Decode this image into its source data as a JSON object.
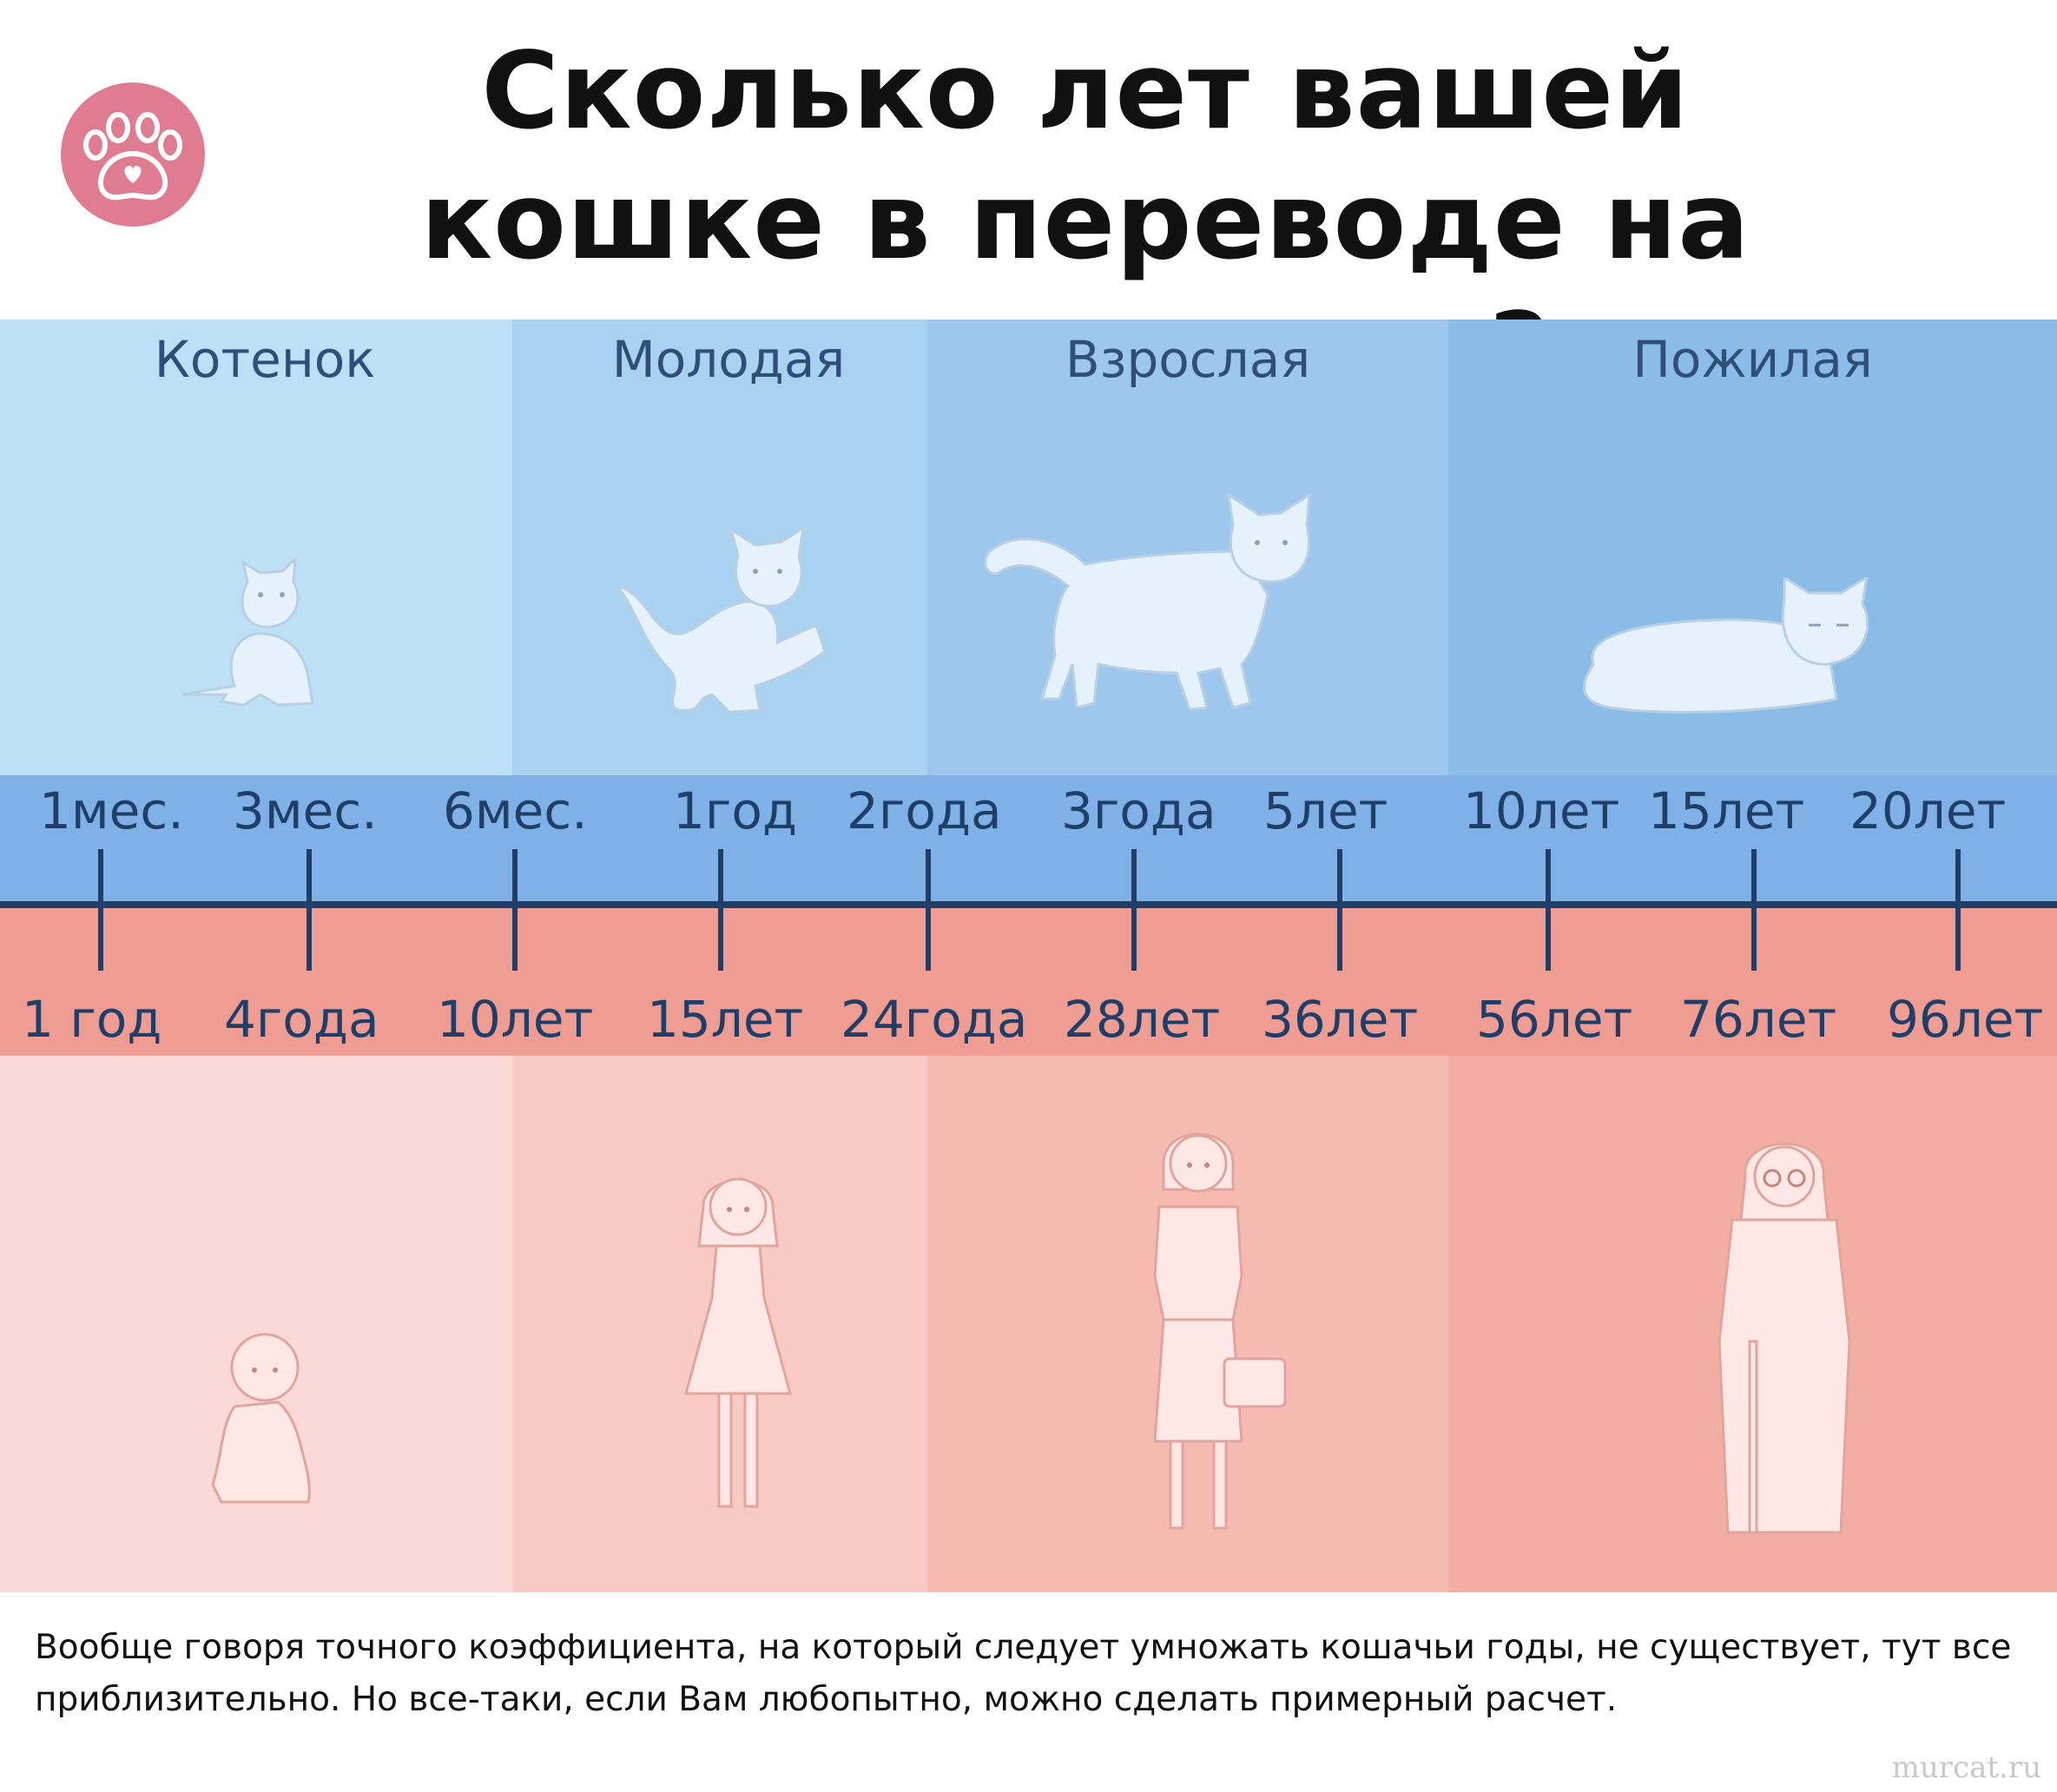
{
  "title": "Сколько лет вашей кошке в переводе на человеческие?",
  "colors": {
    "stage_bands": [
      "#bde0f6",
      "#a9d2f0",
      "#9dc7ec",
      "#8bbce8"
    ],
    "human_bands": [
      "#fad9d6",
      "#f8cac4",
      "#f5bbb3",
      "#f3aea4"
    ],
    "cat_axis": "#7fb1e6",
    "human_axis": "#ef9d93",
    "axis_line": "#1f3f69",
    "badge": "#e07c91"
  },
  "stages": [
    {
      "label": "Котенок",
      "icon": "kitten-icon",
      "person": "baby-icon"
    },
    {
      "label": "Молодая",
      "icon": "young-cat-icon",
      "person": "girl-icon"
    },
    {
      "label": "Взрослая",
      "icon": "adult-cat-icon",
      "person": "woman-icon"
    },
    {
      "label": "Пожилая",
      "icon": "senior-cat-icon",
      "person": "elderly-woman-icon"
    }
  ],
  "timeline": [
    {
      "cat": "1мес.",
      "human": "1 год"
    },
    {
      "cat": "3мес.",
      "human": "4года"
    },
    {
      "cat": "6мес.",
      "human": "10лет"
    },
    {
      "cat": "1год",
      "human": "15лет"
    },
    {
      "cat": "2года",
      "human": "24года"
    },
    {
      "cat": "3года",
      "human": "28лет"
    },
    {
      "cat": "5лет",
      "human": "36лет"
    },
    {
      "cat": "10лет",
      "human": "56лет"
    },
    {
      "cat": "15лет",
      "human": "76лет"
    },
    {
      "cat": "20лет",
      "human": "96лет"
    }
  ],
  "footnote": "Вообще говоря точного коэффициента, на который следует умножать кошачьи годы, не существует, тут все приблизительно. Но все-таки, если Вам любопытно, можно сделать примерный расчет.",
  "watermark": "murcat.ru"
}
